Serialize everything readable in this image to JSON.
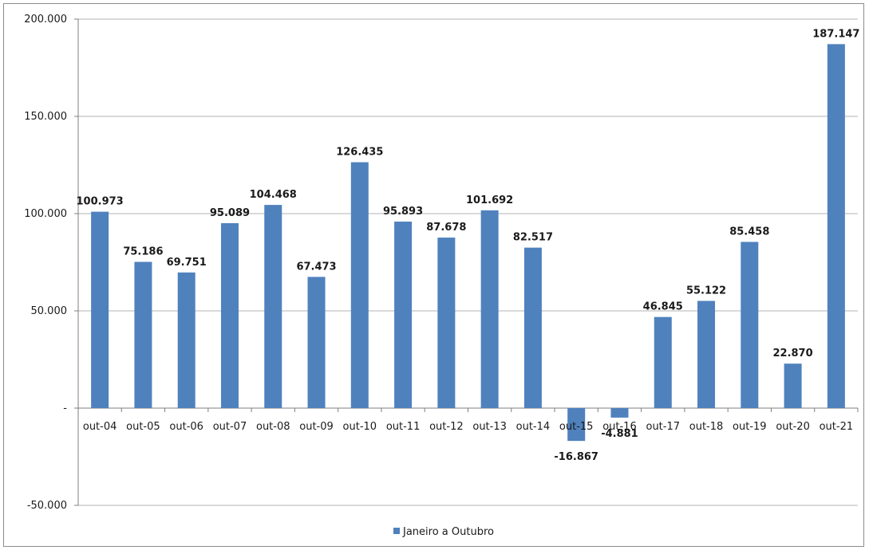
{
  "chart_data": {
    "type": "bar",
    "categories": [
      "out-04",
      "out-05",
      "out-06",
      "out-07",
      "out-08",
      "out-09",
      "out-10",
      "out-11",
      "out-12",
      "out-13",
      "out-14",
      "out-15",
      "out-16",
      "out-17",
      "out-18",
      "out-19",
      "out-20",
      "out-21"
    ],
    "series": [
      {
        "name": "Janeiro a Outubro",
        "color": "#4f81bd",
        "values": [
          100973,
          75186,
          69751,
          95089,
          104468,
          67473,
          126435,
          95893,
          87678,
          101692,
          82517,
          -16867,
          -4881,
          46845,
          55122,
          85458,
          22870,
          187147
        ],
        "labels": [
          "100.973",
          "75.186",
          "69.751",
          "95.089",
          "104.468",
          "67.473",
          "126.435",
          "95.893",
          "87.678",
          "101.692",
          "82.517",
          "-16.867",
          "-4.881",
          "46.845",
          "55.122",
          "85.458",
          "22.870",
          "187.147"
        ]
      }
    ],
    "title": "",
    "xlabel": "",
    "ylabel": "",
    "ylim": [
      -50000,
      200000
    ],
    "yticks": [
      {
        "value": 200000,
        "label": "200.000"
      },
      {
        "value": 150000,
        "label": "150.000"
      },
      {
        "value": 100000,
        "label": "100.000"
      },
      {
        "value": 50000,
        "label": "50.000"
      },
      {
        "value": 0,
        "label": "-"
      },
      {
        "value": -50000,
        "label": "-50.000"
      }
    ],
    "grid": true,
    "legend": "bottom-center",
    "gridline_color": "#b3b3b3",
    "axis_color": "#7f7f7f"
  }
}
